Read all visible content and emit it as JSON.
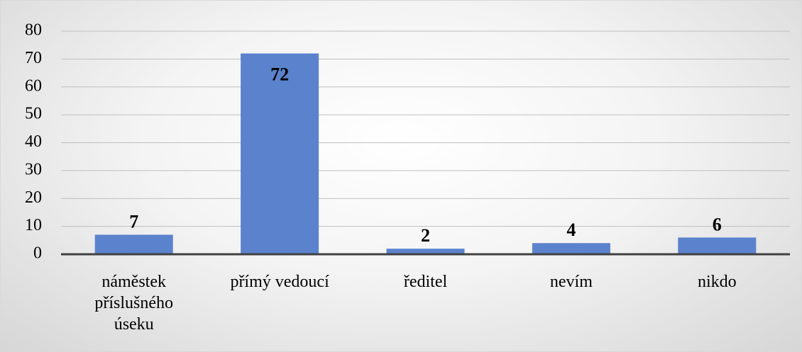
{
  "chart_data": {
    "type": "bar",
    "categories": [
      "náměstek příslušného úseku",
      "přímý vedoucí",
      "ředitel",
      "nevím",
      "nikdo"
    ],
    "values": [
      7,
      72,
      2,
      4,
      6
    ],
    "color": "#5b82cc",
    "ylim": [
      0,
      80
    ],
    "yticks": [
      0,
      10,
      20,
      30,
      40,
      50,
      60,
      70,
      80
    ],
    "grid": true
  }
}
